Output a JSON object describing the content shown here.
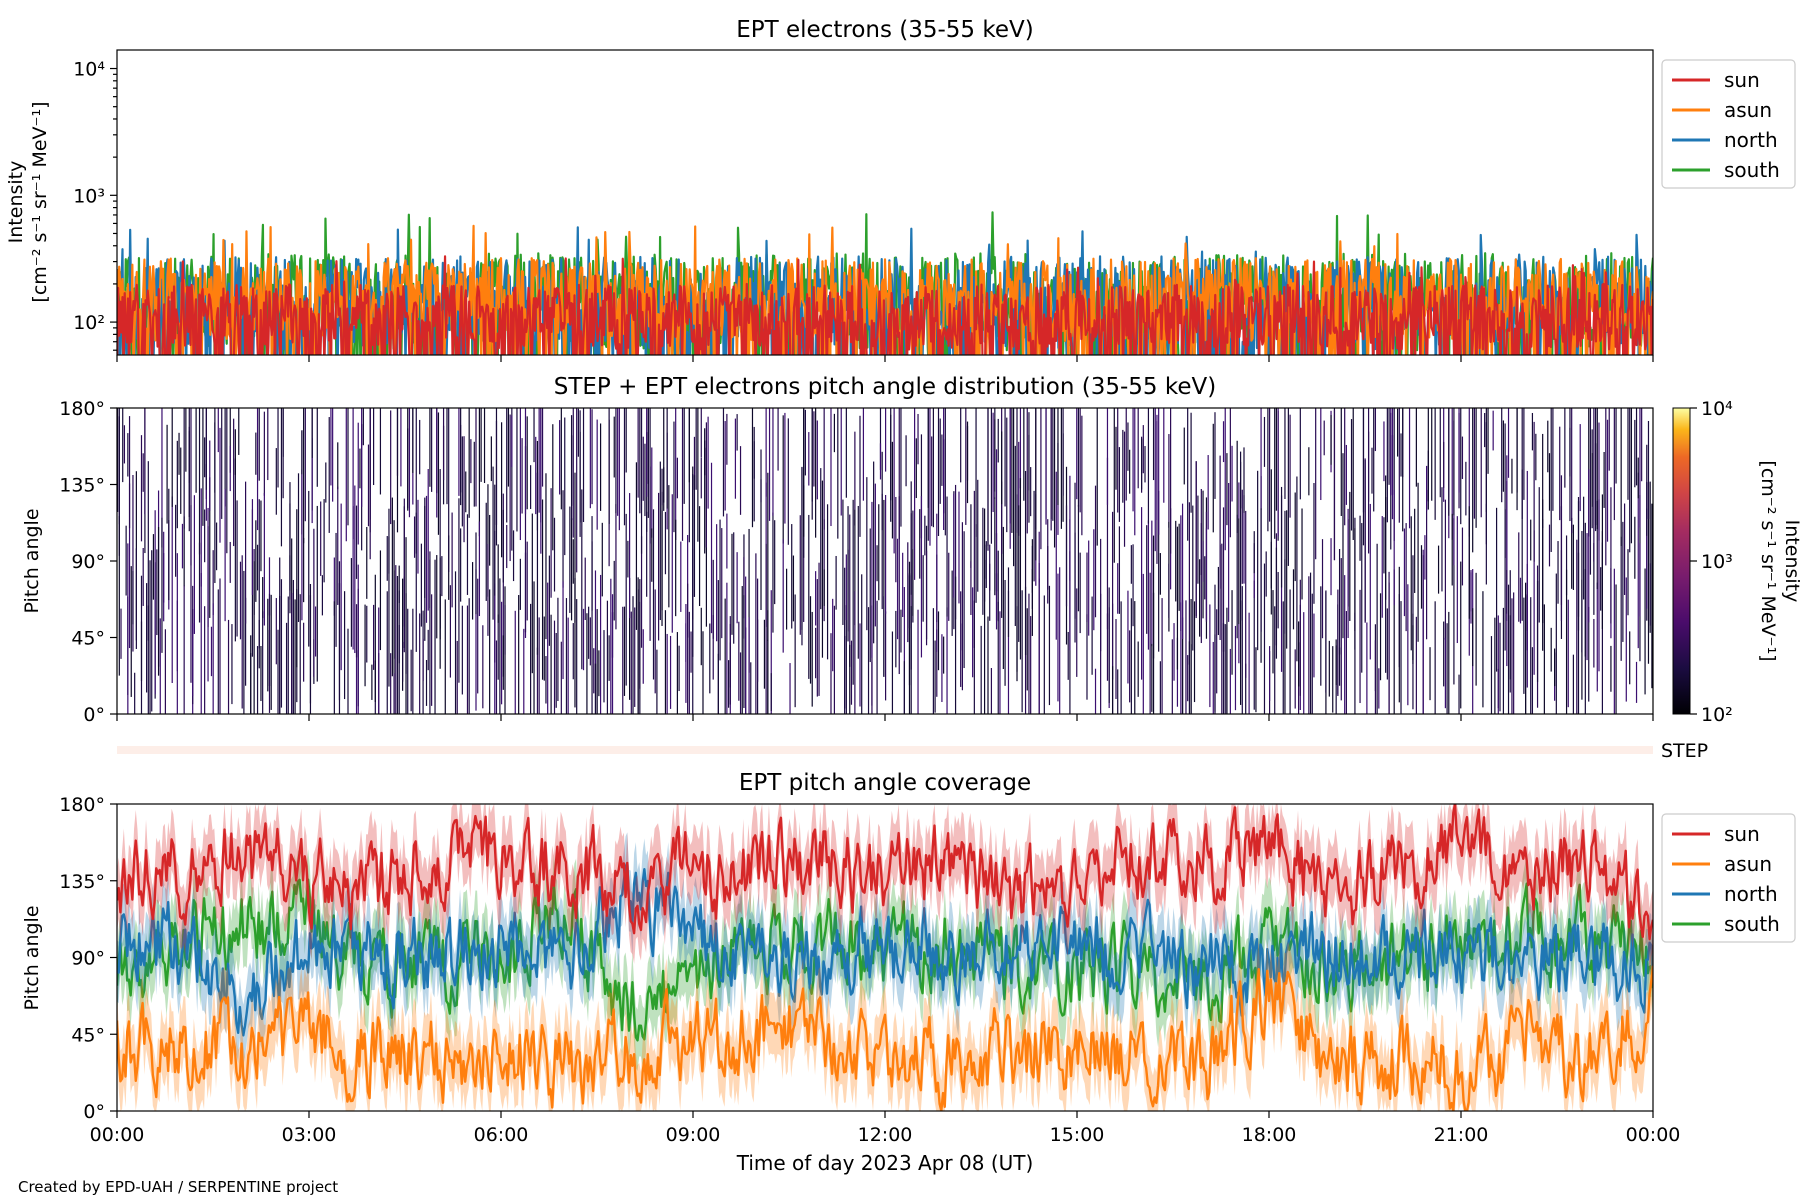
{
  "footer": "Created by EPD-UAH / SERPENTINE project",
  "colors": {
    "sun": "#d62728",
    "asun": "#ff7f0e",
    "north": "#1f77b4",
    "south": "#2ca02c",
    "step_bar": "#fdeee8"
  },
  "chart_data": [
    {
      "type": "line",
      "title": "EPT electrons (35-55 keV)",
      "ylabel": "Intensity",
      "ylabel_units": "[cm⁻² s⁻¹ sr⁻¹ MeV⁻¹]",
      "yscale": "log",
      "ylim": [
        55,
        14000
      ],
      "yticks": [
        100,
        1000,
        10000
      ],
      "ytick_labels": [
        "10²",
        "10³",
        "10⁴"
      ],
      "xlim_hours": [
        0,
        24
      ],
      "legend": "upper-right-outside",
      "series": [
        {
          "name": "sun",
          "color": "#d62728",
          "typical": [
            60,
            200
          ],
          "spikes": 330
        },
        {
          "name": "asun",
          "color": "#ff7f0e",
          "typical": [
            70,
            320
          ],
          "spikes": 620
        },
        {
          "name": "north",
          "color": "#1f77b4",
          "typical": [
            60,
            330
          ],
          "spikes": 560
        },
        {
          "name": "south",
          "color": "#2ca02c",
          "typical": [
            60,
            350
          ],
          "spikes": 740
        }
      ]
    },
    {
      "type": "heatmap",
      "title": "STEP + EPT electrons pitch angle distribution (35-55 keV)",
      "ylabel": "Pitch angle",
      "ylim": [
        0,
        180
      ],
      "yticks": [
        0,
        45,
        90,
        135,
        180
      ],
      "ytick_labels": [
        "0°",
        "45°",
        "90°",
        "135°",
        "180°"
      ],
      "xlim_hours": [
        0,
        24
      ],
      "colorbar": {
        "label": "Intensity",
        "units": "[cm⁻² s⁻¹ sr⁻¹ MeV⁻¹]",
        "scale": "log",
        "range": [
          100,
          10000
        ],
        "ticks": [
          "10²",
          "10³",
          "10⁴"
        ],
        "colormap": "inferno"
      },
      "typical_intensity": [
        100,
        250
      ]
    },
    {
      "type": "bar",
      "label": "STEP",
      "xlim_hours": [
        0,
        24
      ]
    },
    {
      "type": "line",
      "title": "EPT pitch angle coverage",
      "ylabel": "Pitch angle",
      "ylim": [
        0,
        180
      ],
      "yticks": [
        0,
        45,
        90,
        135,
        180
      ],
      "ytick_labels": [
        "0°",
        "45°",
        "90°",
        "135°",
        "180°"
      ],
      "xlabel": "Time of day 2023 Apr 08 (UT)",
      "xlim_hours": [
        0,
        24
      ],
      "xtick_hours": [
        0,
        3,
        6,
        9,
        12,
        15,
        18,
        21,
        24
      ],
      "xtick_labels": [
        "00:00",
        "03:00",
        "06:00",
        "09:00",
        "12:00",
        "15:00",
        "18:00",
        "21:00",
        "00:00"
      ],
      "legend": "upper-right-outside",
      "series": [
        {
          "name": "sun",
          "color": "#d62728",
          "x": [
            0,
            1,
            2,
            3,
            4,
            5,
            6,
            7,
            8,
            9,
            10,
            11,
            12,
            13,
            14,
            15,
            16,
            17,
            18,
            19,
            20,
            21,
            22,
            23,
            24
          ],
          "y": [
            140,
            140,
            150,
            135,
            130,
            150,
            150,
            145,
            130,
            140,
            140,
            150,
            135,
            150,
            125,
            140,
            150,
            150,
            155,
            120,
            145,
            155,
            145,
            148,
            115
          ]
        },
        {
          "name": "asun",
          "color": "#ff7f0e",
          "x": [
            0,
            1,
            2,
            3,
            4,
            5,
            6,
            7,
            8,
            9,
            10,
            11,
            12,
            13,
            14,
            15,
            16,
            17,
            18,
            19,
            20,
            21,
            22,
            23,
            24
          ],
          "y": [
            40,
            40,
            35,
            45,
            30,
            30,
            35,
            25,
            35,
            40,
            45,
            45,
            35,
            30,
            35,
            35,
            30,
            25,
            70,
            25,
            30,
            25,
            40,
            30,
            65
          ]
        },
        {
          "name": "north",
          "color": "#1f77b4",
          "x": [
            0,
            1,
            2,
            3,
            4,
            5,
            6,
            7,
            8,
            9,
            10,
            11,
            12,
            13,
            14,
            15,
            16,
            17,
            18,
            19,
            20,
            21,
            22,
            23,
            24
          ],
          "y": [
            100,
            100,
            70,
            90,
            95,
            90,
            95,
            90,
            130,
            100,
            95,
            90,
            95,
            90,
            95,
            95,
            90,
            85,
            90,
            95,
            90,
            95,
            90,
            90,
            85
          ]
        },
        {
          "name": "south",
          "color": "#2ca02c",
          "x": [
            0,
            1,
            2,
            3,
            4,
            5,
            6,
            7,
            8,
            9,
            10,
            11,
            12,
            13,
            14,
            15,
            16,
            17,
            18,
            19,
            20,
            21,
            22,
            23,
            24
          ],
          "y": [
            85,
            100,
            110,
            110,
            80,
            90,
            90,
            120,
            60,
            75,
            95,
            100,
            95,
            100,
            85,
            85,
            80,
            75,
            95,
            90,
            90,
            95,
            100,
            100,
            95
          ]
        }
      ]
    }
  ]
}
